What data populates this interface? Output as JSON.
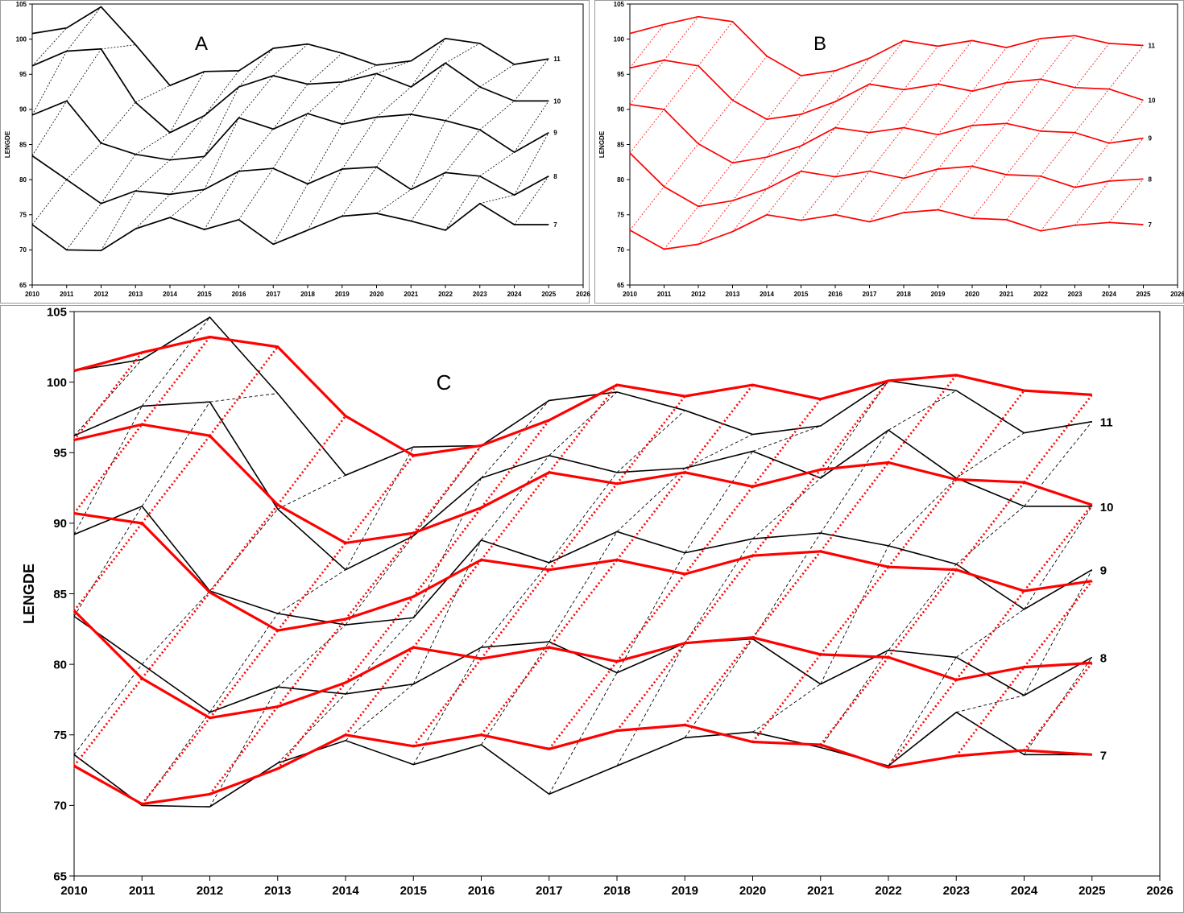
{
  "chart_data": [
    {
      "type": "line",
      "panel": "A",
      "ylabel": "LENGDE",
      "xlabel": "",
      "xlim": [
        2010,
        2026
      ],
      "ylim": [
        65,
        105
      ],
      "x_ticks": [
        "2010",
        "2011",
        "2012",
        "2013",
        "2014",
        "2015",
        "2016",
        "2017",
        "2018",
        "2019",
        "2020",
        "2021",
        "2022",
        "2023",
        "2024",
        "2025",
        "2026"
      ],
      "y_ticks": [
        "65",
        "70",
        "75",
        "80",
        "85",
        "90",
        "95",
        "100",
        "105"
      ],
      "color": "#000000",
      "x": [
        2010,
        2011,
        2012,
        2013,
        2014,
        2015,
        2016,
        2017,
        2018,
        2019,
        2020,
        2021,
        2022,
        2023,
        2024,
        2025
      ],
      "series": [
        {
          "name": "7",
          "values": [
            73.6,
            70.0,
            69.9,
            73.0,
            74.6,
            72.9,
            74.3,
            70.8,
            72.8,
            74.8,
            75.2,
            74.1,
            72.8,
            76.6,
            73.6,
            73.6
          ]
        },
        {
          "name": "8",
          "values": [
            83.4,
            80.0,
            76.6,
            78.4,
            77.9,
            78.6,
            81.2,
            81.6,
            79.4,
            81.5,
            81.8,
            78.6,
            81.0,
            80.5,
            77.8,
            80.5
          ]
        },
        {
          "name": "9",
          "values": [
            89.2,
            91.2,
            85.2,
            83.6,
            82.8,
            83.3,
            88.8,
            87.2,
            89.4,
            87.9,
            88.9,
            89.3,
            88.4,
            87.1,
            83.9,
            86.7
          ]
        },
        {
          "name": "10",
          "values": [
            96.2,
            98.3,
            98.6,
            91.0,
            86.7,
            89.1,
            93.2,
            94.8,
            93.6,
            93.9,
            95.1,
            93.2,
            96.6,
            93.2,
            91.2,
            91.2
          ]
        },
        {
          "name": "11",
          "values": [
            100.8,
            101.6,
            104.6,
            99.2,
            93.4,
            95.4,
            95.5,
            98.7,
            99.3,
            98.0,
            96.3,
            96.9,
            100.1,
            99.4,
            96.4,
            97.2
          ]
        }
      ],
      "series_labels": [
        "7",
        "8",
        "9",
        "10",
        "11"
      ],
      "title": "A"
    },
    {
      "type": "line",
      "panel": "B",
      "ylabel": "LENGDE",
      "xlabel": "",
      "xlim": [
        2010,
        2026
      ],
      "ylim": [
        65,
        105
      ],
      "x_ticks": [
        "2010",
        "2011",
        "2012",
        "2013",
        "2014",
        "2015",
        "2016",
        "2017",
        "2018",
        "2019",
        "2020",
        "2021",
        "2022",
        "2023",
        "2024",
        "2025",
        "2026"
      ],
      "y_ticks": [
        "65",
        "70",
        "75",
        "80",
        "85",
        "90",
        "95",
        "100",
        "105"
      ],
      "color": "#ff0000",
      "x": [
        2010,
        2011,
        2012,
        2013,
        2014,
        2015,
        2016,
        2017,
        2018,
        2019,
        2020,
        2021,
        2022,
        2023,
        2024,
        2025
      ],
      "series": [
        {
          "name": "7",
          "values": [
            72.8,
            70.1,
            70.8,
            72.6,
            75.0,
            74.2,
            75.0,
            74.0,
            75.3,
            75.7,
            74.5,
            74.3,
            72.7,
            73.5,
            73.9,
            73.6
          ]
        },
        {
          "name": "8",
          "values": [
            83.8,
            79.0,
            76.2,
            77.0,
            78.7,
            81.2,
            80.4,
            81.2,
            80.2,
            81.5,
            81.9,
            80.7,
            80.5,
            78.9,
            79.8,
            80.1
          ]
        },
        {
          "name": "9",
          "values": [
            90.7,
            90.0,
            85.1,
            82.4,
            83.2,
            84.8,
            87.4,
            86.7,
            87.4,
            86.4,
            87.7,
            88.0,
            86.9,
            86.7,
            85.2,
            85.9
          ]
        },
        {
          "name": "10",
          "values": [
            95.9,
            97.0,
            96.2,
            91.3,
            88.6,
            89.3,
            91.1,
            93.6,
            92.8,
            93.6,
            92.6,
            93.8,
            94.3,
            93.1,
            92.9,
            91.3
          ]
        },
        {
          "name": "11",
          "values": [
            100.8,
            102.1,
            103.2,
            102.5,
            97.6,
            94.8,
            95.5,
            97.3,
            99.8,
            99.0,
            99.8,
            98.8,
            100.1,
            100.5,
            99.4,
            99.1
          ]
        }
      ],
      "series_labels": [
        "7",
        "8",
        "9",
        "10",
        "11"
      ],
      "title": "B"
    },
    {
      "type": "line",
      "panel": "C",
      "ylabel": "LENGDE",
      "xlabel": "",
      "xlim": [
        2010,
        2026
      ],
      "ylim": [
        65,
        105
      ],
      "x_ticks": [
        "2010",
        "2011",
        "2012",
        "2013",
        "2014",
        "2015",
        "2016",
        "2017",
        "2018",
        "2019",
        "2020",
        "2021",
        "2022",
        "2023",
        "2024",
        "2025",
        "2026"
      ],
      "y_ticks": [
        "65",
        "70",
        "75",
        "80",
        "85",
        "90",
        "95",
        "100",
        "105"
      ],
      "x": [
        2010,
        2011,
        2012,
        2013,
        2014,
        2015,
        2016,
        2017,
        2018,
        2019,
        2020,
        2021,
        2022,
        2023,
        2024,
        2025
      ],
      "overlay": [
        "A",
        "B"
      ],
      "series_labels": [
        "7",
        "8",
        "9",
        "10",
        "11"
      ],
      "title": "C"
    }
  ]
}
